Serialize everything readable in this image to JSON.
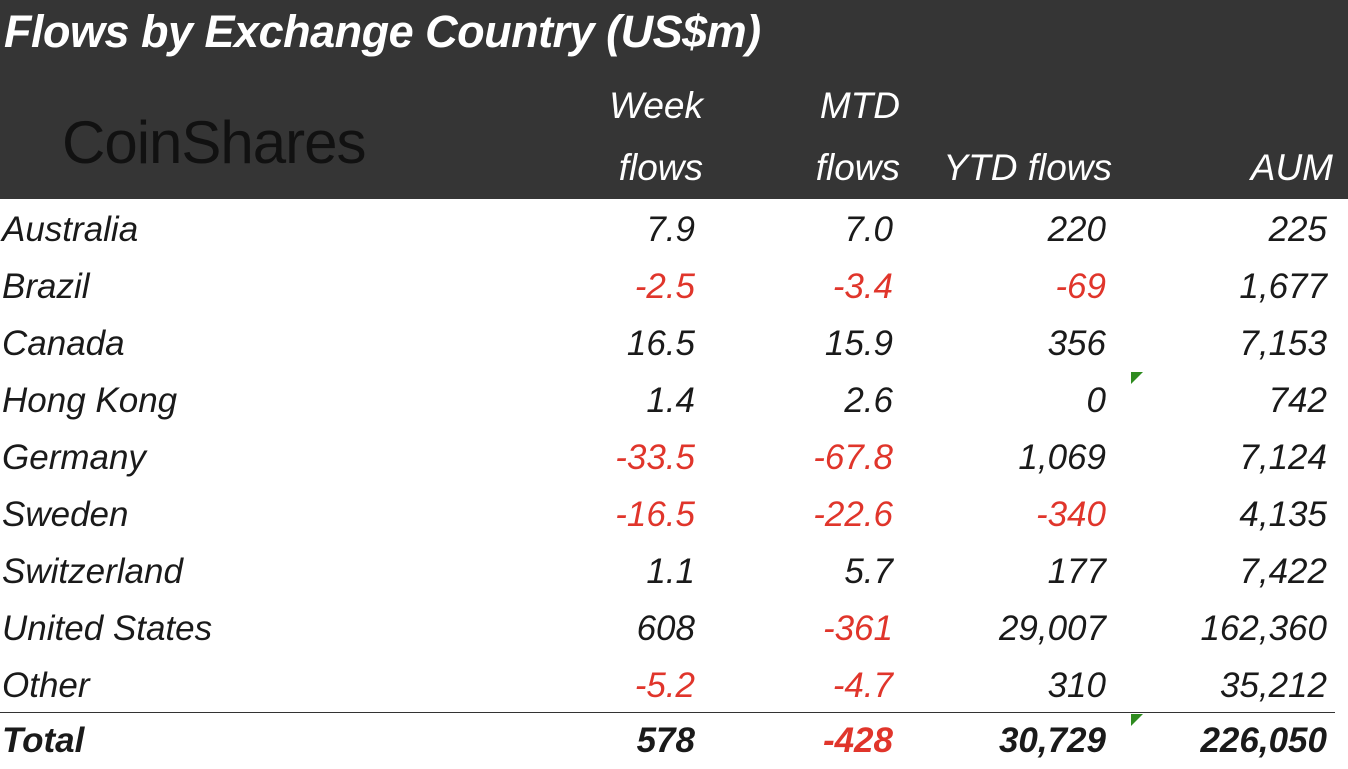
{
  "title": "Flows by Exchange Country (US$m)",
  "logo_text": "CoinShares",
  "columns": {
    "week_line1": "Week",
    "week_line2": "flows",
    "mtd_line1": "MTD",
    "mtd_line2": "flows",
    "ytd": "YTD flows",
    "aum": "AUM"
  },
  "rows": [
    {
      "country": "Australia",
      "week": "7.9",
      "mtd": "7.0",
      "ytd": "220",
      "aum": "225"
    },
    {
      "country": "Brazil",
      "week": "-2.5",
      "mtd": "-3.4",
      "ytd": "-69",
      "aum": "1,677"
    },
    {
      "country": "Canada",
      "week": "16.5",
      "mtd": "15.9",
      "ytd": "356",
      "aum": "7,153"
    },
    {
      "country": "Hong Kong",
      "week": "1.4",
      "mtd": "2.6",
      "ytd": "0",
      "aum": "742"
    },
    {
      "country": "Germany",
      "week": "-33.5",
      "mtd": "-67.8",
      "ytd": "1,069",
      "aum": "7,124"
    },
    {
      "country": "Sweden",
      "week": "-16.5",
      "mtd": "-22.6",
      "ytd": "-340",
      "aum": "4,135"
    },
    {
      "country": "Switzerland",
      "week": "1.1",
      "mtd": "5.7",
      "ytd": "177",
      "aum": "7,422"
    },
    {
      "country": "United States",
      "week": "608",
      "mtd": "-361",
      "ytd": "29,007",
      "aum": "162,360"
    },
    {
      "country": "Other",
      "week": "-5.2",
      "mtd": "-4.7",
      "ytd": "310",
      "aum": "35,212"
    }
  ],
  "total": {
    "label": "Total",
    "week": "578",
    "mtd": "-428",
    "ytd": "30,729",
    "aum": "226,050"
  },
  "colors": {
    "header_bg": "#353535",
    "negative": "#e0352b",
    "marker": "#2e8b1f"
  }
}
